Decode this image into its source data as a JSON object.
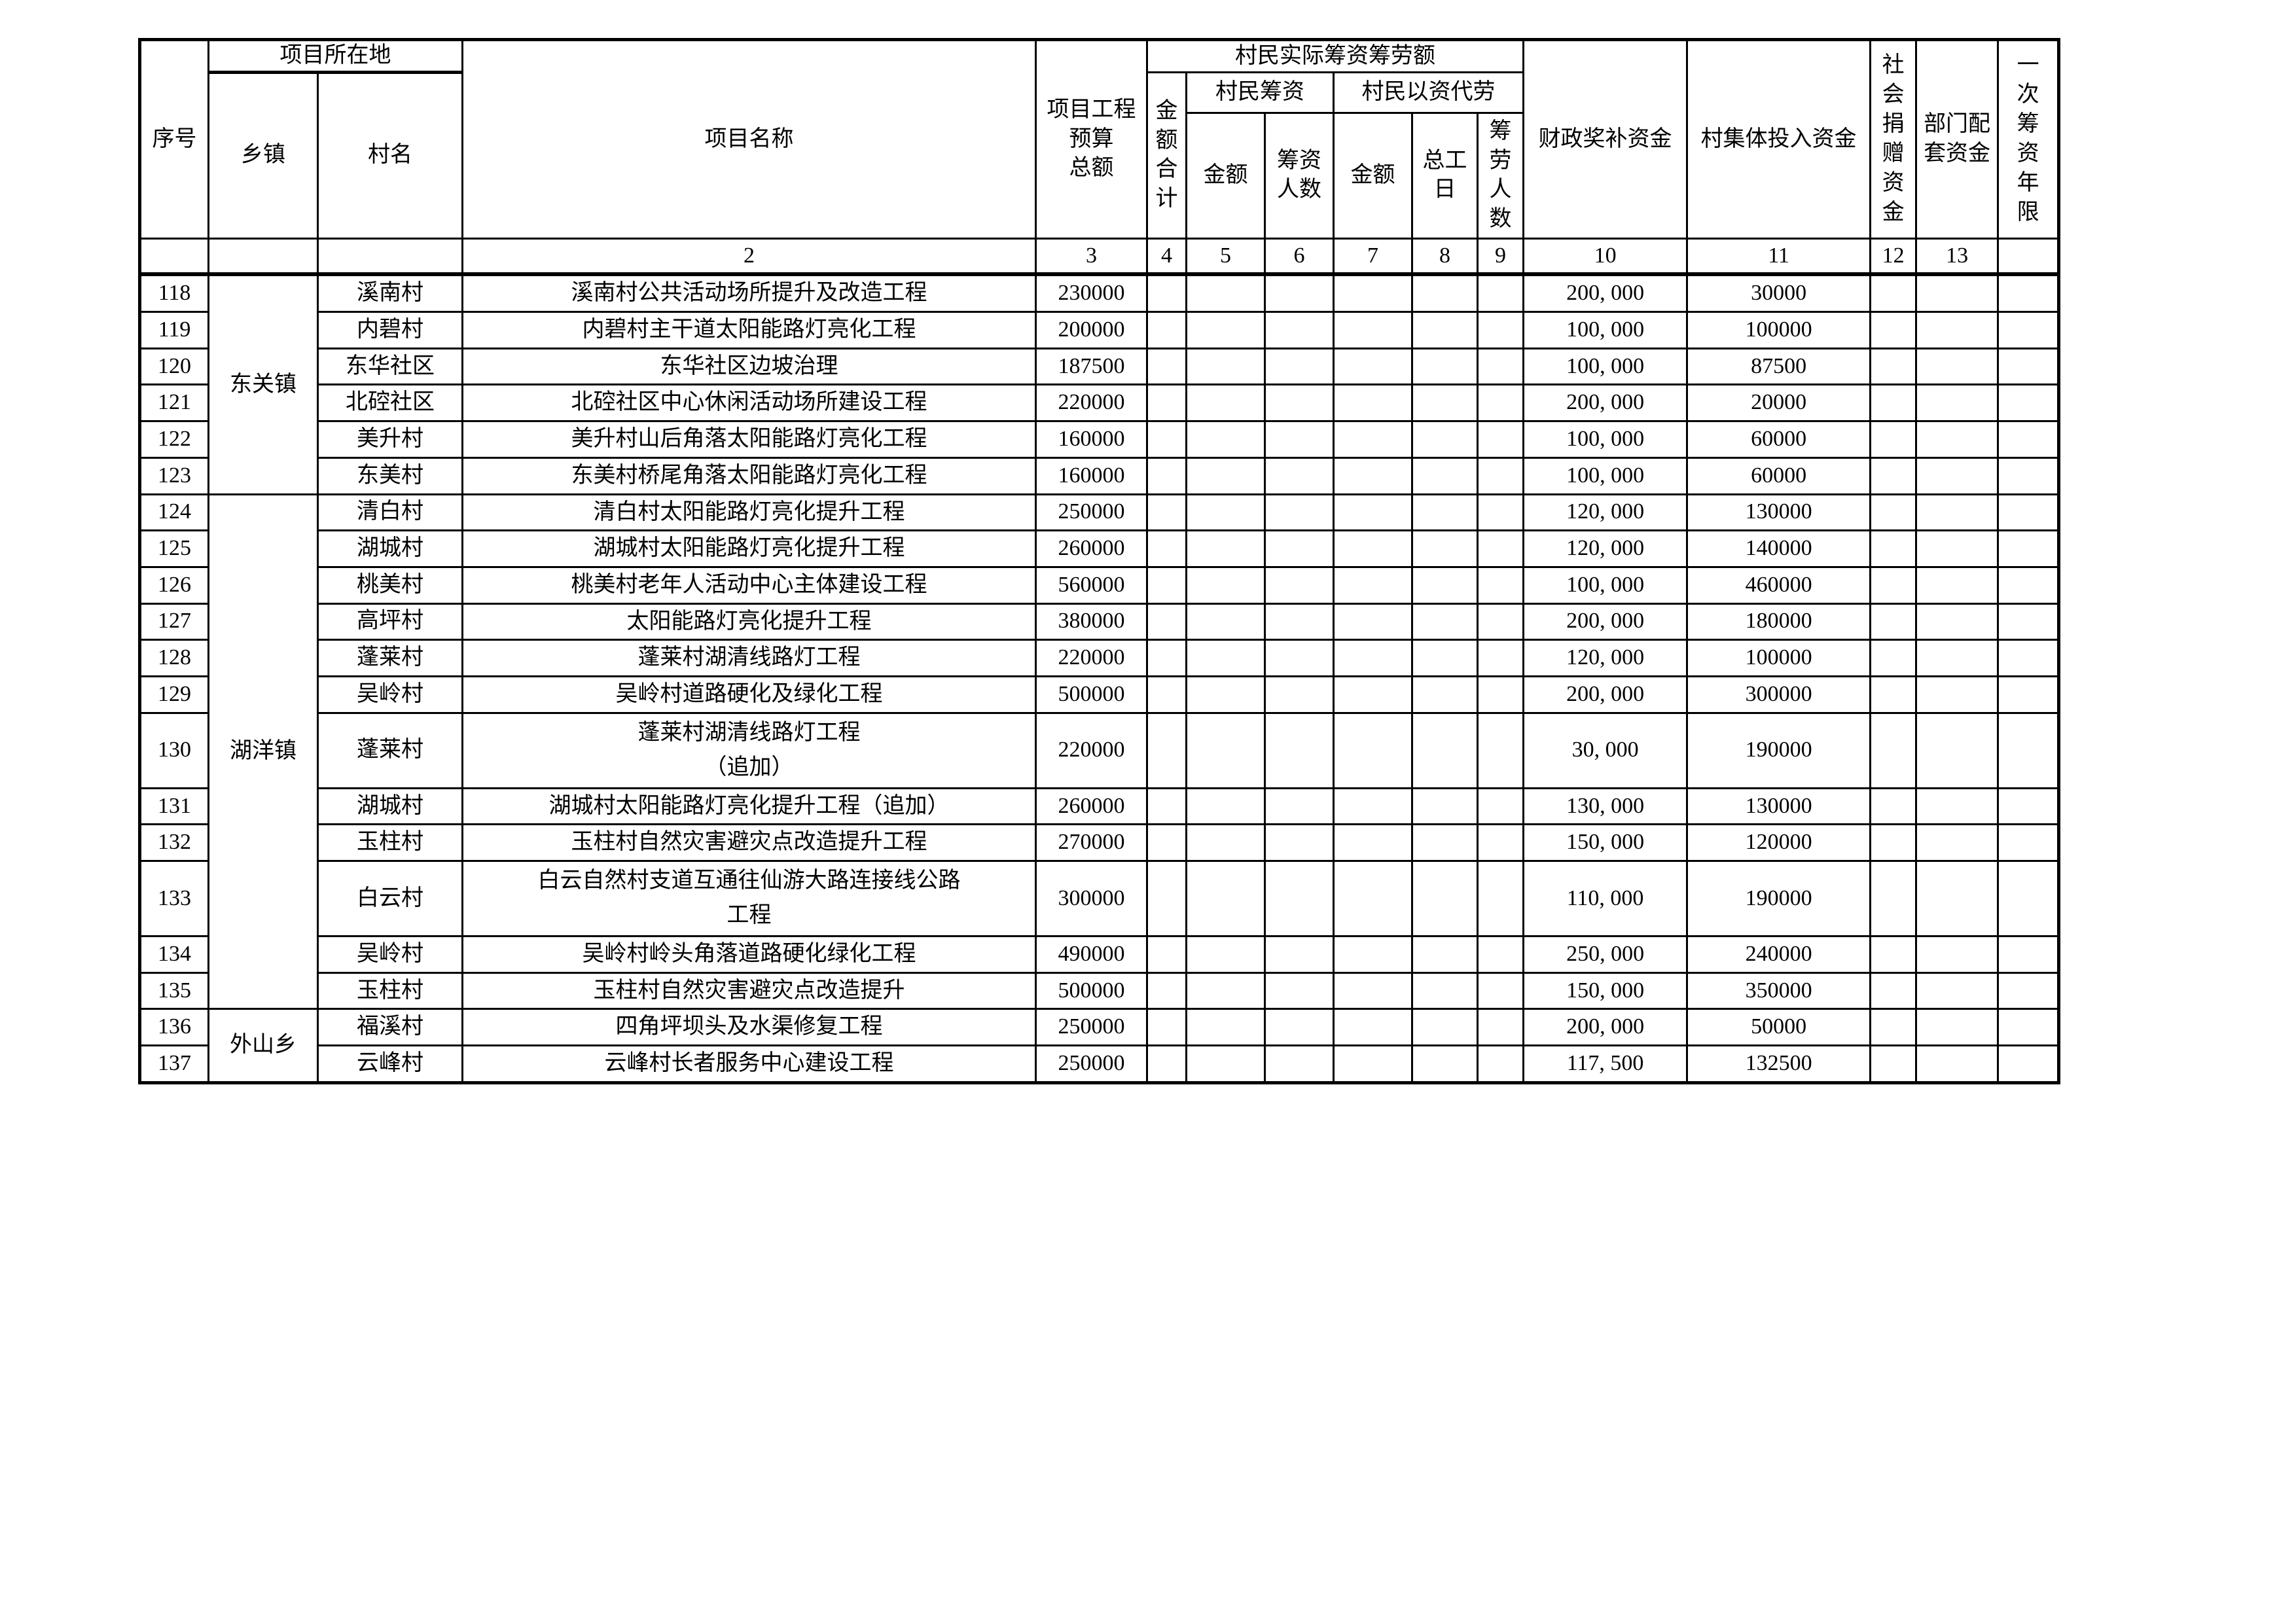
{
  "table": {
    "header": {
      "serial": "序号",
      "location_group": "项目所在地",
      "township": "乡镇",
      "village": "村名",
      "project_name": "项目名称",
      "budget_total": "项目工程预算\n总额",
      "villager_actual_group": "村民实际筹资筹劳额",
      "amount_sum": "金\n额\n合\n计",
      "villager_fundraise_group": "村民筹资",
      "fundraise_amount": "金额",
      "fundraise_people": "筹资\n人数",
      "labor_in_cash_group": "村民以资代劳",
      "labor_amount": "金额",
      "labor_workdays": "总工\n日",
      "labor_people": "筹\n劳\n人\n数",
      "fiscal_award": "财政奖补资金",
      "village_collective": "村集体投入资金",
      "social_donation": "社\n会\n捐\n赠\n资\n金",
      "dept_matching": "部门配\n套资金",
      "one_time_years": "一\n次\n筹\n资\n年\n限"
    },
    "column_numbers": [
      "",
      "",
      "",
      "2",
      "3",
      "4",
      "5",
      "6",
      "7",
      "8",
      "9",
      "10",
      "11",
      "12",
      "13",
      ""
    ],
    "townships": [
      {
        "name": "东关镇",
        "span": 6
      },
      {
        "name": "湖洋镇",
        "span": 12
      },
      {
        "name": "外山乡",
        "span": 2
      }
    ],
    "rows": [
      {
        "no": "118",
        "village": "溪南村",
        "project": "溪南村公共活动场所提升及改造工程",
        "budget": "230000",
        "fiscal": "200, 000",
        "collective": "30000",
        "tall": false
      },
      {
        "no": "119",
        "village": "内碧村",
        "project": "内碧村主干道太阳能路灯亮化工程",
        "budget": "200000",
        "fiscal": "100, 000",
        "collective": "100000",
        "tall": false
      },
      {
        "no": "120",
        "village": "东华社区",
        "project": "东华社区边坡治理",
        "budget": "187500",
        "fiscal": "100, 000",
        "collective": "87500",
        "tall": false
      },
      {
        "no": "121",
        "village": "北硿社区",
        "project": "北硿社区中心休闲活动场所建设工程",
        "budget": "220000",
        "fiscal": "200, 000",
        "collective": "20000",
        "tall": false
      },
      {
        "no": "122",
        "village": "美升村",
        "project": "美升村山后角落太阳能路灯亮化工程",
        "budget": "160000",
        "fiscal": "100, 000",
        "collective": "60000",
        "tall": false
      },
      {
        "no": "123",
        "village": "东美村",
        "project": "东美村桥尾角落太阳能路灯亮化工程",
        "budget": "160000",
        "fiscal": "100, 000",
        "collective": "60000",
        "tall": false
      },
      {
        "no": "124",
        "village": "清白村",
        "project": "清白村太阳能路灯亮化提升工程",
        "budget": "250000",
        "fiscal": "120, 000",
        "collective": "130000",
        "tall": false
      },
      {
        "no": "125",
        "village": "湖城村",
        "project": "湖城村太阳能路灯亮化提升工程",
        "budget": "260000",
        "fiscal": "120, 000",
        "collective": "140000",
        "tall": false
      },
      {
        "no": "126",
        "village": "桃美村",
        "project": "桃美村老年人活动中心主体建设工程",
        "budget": "560000",
        "fiscal": "100, 000",
        "collective": "460000",
        "tall": false
      },
      {
        "no": "127",
        "village": "高坪村",
        "project": "太阳能路灯亮化提升工程",
        "budget": "380000",
        "fiscal": "200, 000",
        "collective": "180000",
        "tall": false
      },
      {
        "no": "128",
        "village": "蓬莱村",
        "project": "蓬莱村湖清线路灯工程",
        "budget": "220000",
        "fiscal": "120, 000",
        "collective": "100000",
        "tall": false
      },
      {
        "no": "129",
        "village": "吴岭村",
        "project": "吴岭村道路硬化及绿化工程",
        "budget": "500000",
        "fiscal": "200, 000",
        "collective": "300000",
        "tall": false
      },
      {
        "no": "130",
        "village": "蓬莱村",
        "project": "蓬莱村湖清线路灯工程\n（追加）",
        "budget": "220000",
        "fiscal": "30, 000",
        "collective": "190000",
        "tall": true
      },
      {
        "no": "131",
        "village": "湖城村",
        "project": "湖城村太阳能路灯亮化提升工程（追加）",
        "budget": "260000",
        "fiscal": "130, 000",
        "collective": "130000",
        "tall": false
      },
      {
        "no": "132",
        "village": "玉柱村",
        "project": "玉柱村自然灾害避灾点改造提升工程",
        "budget": "270000",
        "fiscal": "150, 000",
        "collective": "120000",
        "tall": false
      },
      {
        "no": "133",
        "village": "白云村",
        "project": "白云自然村支道互通往仙游大路连接线公路\n工程",
        "budget": "300000",
        "fiscal": "110, 000",
        "collective": "190000",
        "tall": true
      },
      {
        "no": "134",
        "village": "吴岭村",
        "project": "吴岭村岭头角落道路硬化绿化工程",
        "budget": "490000",
        "fiscal": "250, 000",
        "collective": "240000",
        "tall": false
      },
      {
        "no": "135",
        "village": "玉柱村",
        "project": "玉柱村自然灾害避灾点改造提升",
        "budget": "500000",
        "fiscal": "150, 000",
        "collective": "350000",
        "tall": false
      },
      {
        "no": "136",
        "village": "福溪村",
        "project": "四角坪坝头及水渠修复工程",
        "budget": "250000",
        "fiscal": "200, 000",
        "collective": "50000",
        "tall": false
      },
      {
        "no": "137",
        "village": "云峰村",
        "project": "云峰村长者服务中心建设工程",
        "budget": "250000",
        "fiscal": "117, 500",
        "collective": "132500",
        "tall": false
      }
    ],
    "colors": {
      "border": "#000000",
      "background": "#ffffff",
      "text": "#000000"
    }
  }
}
